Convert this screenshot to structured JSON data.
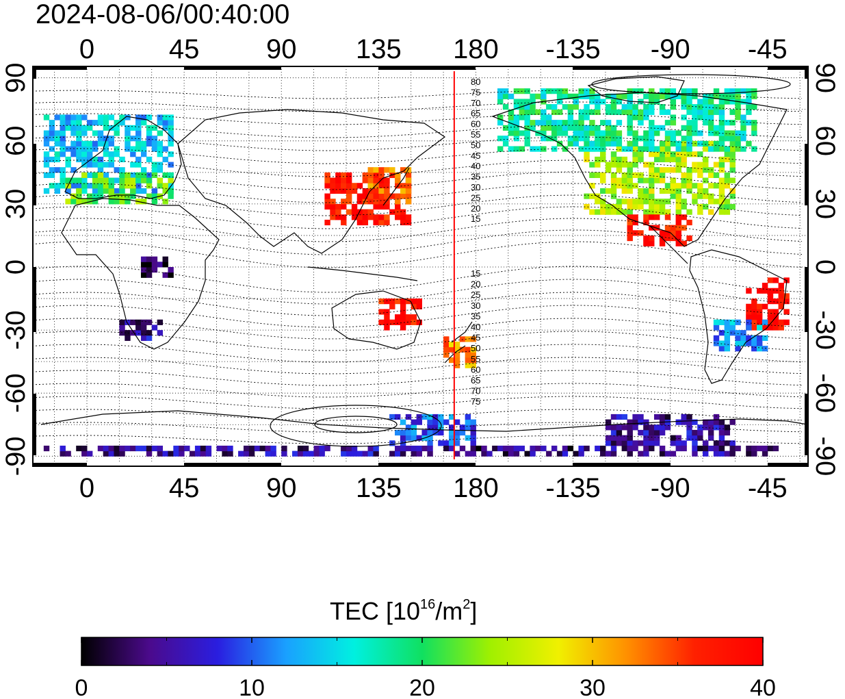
{
  "title": "2024-08-06/00:40:00",
  "axes": {
    "top_lon_ticks": [
      "0",
      "45",
      "90",
      "135",
      "180",
      "-135",
      "-90",
      "-45"
    ],
    "bottom_lon_ticks": [
      "0",
      "45",
      "90",
      "135",
      "180",
      "-135",
      "-90",
      "-45"
    ],
    "left_lat_ticks": [
      "90",
      "60",
      "30",
      "0",
      "-30",
      "-60",
      "-90"
    ],
    "right_lat_ticks": [
      "90",
      "60",
      "30",
      "0",
      "-30",
      "-60",
      "-90"
    ]
  },
  "contour_labels_north": [
    "80",
    "75",
    "70",
    "65",
    "60",
    "55",
    "50",
    "45",
    "40",
    "35",
    "30",
    "25",
    "20",
    "15"
  ],
  "contour_labels_south": [
    "15",
    "20",
    "25",
    "30",
    "35",
    "40",
    "45",
    "50",
    "55",
    "60",
    "65",
    "70",
    "75"
  ],
  "colorbar": {
    "label_main": "TEC  [10",
    "label_sup1": "16",
    "label_mid": "/m",
    "label_sup2": "2",
    "label_end": "]",
    "min": 0,
    "max": 40,
    "ticks": [
      "0",
      "10",
      "20",
      "30",
      "40"
    ],
    "colors": [
      "#000000",
      "#4b0a8c",
      "#2a1ee0",
      "#1aa0ff",
      "#00f0e0",
      "#10e060",
      "#a0f000",
      "#f0f000",
      "#ff9000",
      "#ff2000",
      "#ff0000"
    ]
  },
  "marker_meridian_lon": 170,
  "marker_color": "#ff0000",
  "tec_regions": [
    {
      "name": "europe",
      "lon": [
        -20,
        40
      ],
      "lat": [
        35,
        72
      ],
      "tec": 14
    },
    {
      "name": "europe-south",
      "lon": [
        -10,
        40
      ],
      "lat": [
        30,
        45
      ],
      "tec": 22
    },
    {
      "name": "east-asia",
      "lon": [
        110,
        150
      ],
      "lat": [
        20,
        45
      ],
      "tec": 38
    },
    {
      "name": "japan",
      "lon": [
        130,
        148
      ],
      "lat": [
        30,
        46
      ],
      "tec": 34
    },
    {
      "name": "north-america",
      "lon": [
        -130,
        -60
      ],
      "lat": [
        25,
        60
      ],
      "tec": 25
    },
    {
      "name": "canada-arctic",
      "lon": [
        -170,
        -50
      ],
      "lat": [
        55,
        85
      ],
      "tec": 18
    },
    {
      "name": "central-america",
      "lon": [
        -110,
        -80
      ],
      "lat": [
        10,
        25
      ],
      "tec": 38
    },
    {
      "name": "brazil-east",
      "lon": [
        -55,
        -35
      ],
      "lat": [
        -30,
        -5
      ],
      "tec": 39
    },
    {
      "name": "south-america-south",
      "lon": [
        -70,
        -45
      ],
      "lat": [
        -40,
        -25
      ],
      "tec": 12
    },
    {
      "name": "southern-africa",
      "lon": [
        15,
        35
      ],
      "lat": [
        -35,
        -25
      ],
      "tec": 5
    },
    {
      "name": "central-africa",
      "lon": [
        25,
        40
      ],
      "lat": [
        -5,
        5
      ],
      "tec": 1
    },
    {
      "name": "australia-east",
      "lon": [
        135,
        155
      ],
      "lat": [
        -30,
        -15
      ],
      "tec": 38
    },
    {
      "name": "new-zealand",
      "lon": [
        165,
        180
      ],
      "lat": [
        -48,
        -35
      ],
      "tec": 32
    },
    {
      "name": "antarctic-pacific",
      "lon": [
        140,
        180
      ],
      "lat": [
        -85,
        -72
      ],
      "tec": 10
    },
    {
      "name": "antarctic-west",
      "lon": [
        -120,
        -60
      ],
      "lat": [
        -85,
        -72
      ],
      "tec": 5
    },
    {
      "name": "antarctic-rim",
      "lon": [
        -20,
        180
      ],
      "lat": [
        -90,
        -86
      ],
      "tec": 5
    },
    {
      "name": "antarctic-rim-w",
      "lon": [
        -180,
        -40
      ],
      "lat": [
        -90,
        -86
      ],
      "tec": 4
    }
  ]
}
